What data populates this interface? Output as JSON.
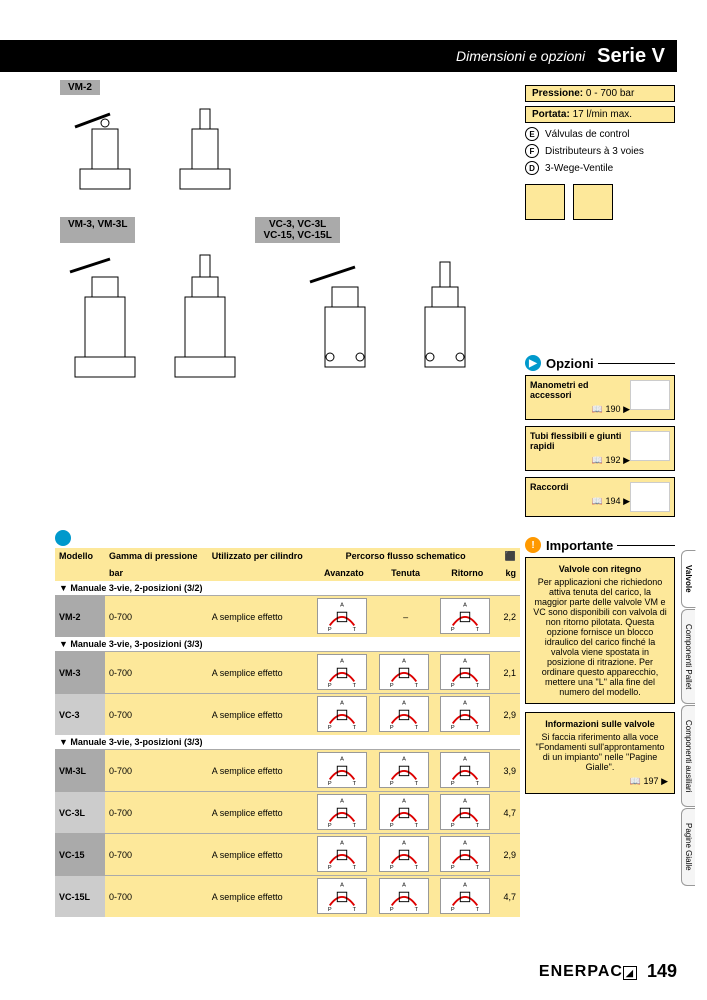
{
  "header": {
    "subtitle": "Dimensioni e opzioni",
    "title": "Serie V"
  },
  "model_labels": {
    "vm2": "VM-2",
    "vm3": "VM-3, VM-3L",
    "vc3": "VC-3, VC-3L\nVC-15, VC-15L"
  },
  "specs": {
    "pressure_label": "Pressione:",
    "pressure_value": "0 - 700 bar",
    "flow_label": "Portata:",
    "flow_value": "17 l/min max."
  },
  "languages": [
    {
      "letter": "E",
      "text": "Válvulas de control"
    },
    {
      "letter": "F",
      "text": "Distributeurs à 3 voies"
    },
    {
      "letter": "D",
      "text": "3-Wege-Ventile"
    }
  ],
  "opzioni_title": "Opzioni",
  "options": [
    {
      "title": "Manometri ed accessori",
      "page": "190"
    },
    {
      "title": "Tubi flessibili e giunti rapidi",
      "page": "192"
    },
    {
      "title": "Raccordi",
      "page": "194"
    }
  ],
  "importante_title": "Importante",
  "importante_heading": "Valvole con ritegno",
  "importante_body": "Per applicazioni che richiedono attiva tenuta del carico, la maggior parte delle valvole VM e VC sono disponibili con valvola di non ritorno pilotata. Questa opzione fornisce un blocco idraulico del carico finché la valvola viene spostata in posizione di ritrazione. Per ordinare questo apparecchio, mettere una \"L\" alla fine del numero del modello.",
  "info2_heading": "Informazioni sulle valvole",
  "info2_body": "Si faccia riferimento alla voce \"Fondamenti sull'approntamento di un impianto\" nelle \"Pagine Gialle\".",
  "info2_page": "197",
  "table": {
    "headers": {
      "modello": "Modello",
      "gamma": "Gamma di pressione",
      "gamma_unit": "bar",
      "utilizzato": "Utilizzato per cilindro",
      "percorso": "Percorso flusso schematico",
      "avanzato": "Avanzato",
      "tenuta": "Tenuta",
      "ritorno": "Ritorno",
      "kg": "kg"
    },
    "sections": [
      {
        "title": "Manuale 3-vie, 2-posizioni (3/2)",
        "rows": [
          {
            "model": "VM-2",
            "range": "0-700",
            "use": "A semplice effetto",
            "hold": "–",
            "kg": "2,2"
          }
        ]
      },
      {
        "title": "Manuale 3-vie, 3-posizioni (3/3)",
        "rows": [
          {
            "model": "VM-3",
            "range": "0-700",
            "use": "A semplice effetto",
            "kg": "2,1"
          },
          {
            "model": "VC-3",
            "range": "0-700",
            "use": "A semplice effetto",
            "kg": "2,9"
          }
        ]
      },
      {
        "title": "Manuale 3-vie, 3-posizioni (3/3)",
        "rows": [
          {
            "model": "VM-3L",
            "range": "0-700",
            "use": "A semplice effetto",
            "kg": "3,9"
          },
          {
            "model": "VC-3L",
            "range": "0-700",
            "use": "A semplice effetto",
            "kg": "4,7"
          },
          {
            "model": "VC-15",
            "range": "0-700",
            "use": "A semplice effetto",
            "kg": "2,9"
          },
          {
            "model": "VC-15L",
            "range": "0-700",
            "use": "A semplice effetto",
            "kg": "4,7"
          }
        ]
      }
    ]
  },
  "tabs": [
    "Valvole",
    "Componenti Pallet",
    "Componenti ausiliari",
    "Pagine Gialle"
  ],
  "brand": "ENERPAC",
  "page_number": "149",
  "colors": {
    "accent": "#fde89a",
    "blue": "#0099cc",
    "orange": "#ff9900"
  }
}
